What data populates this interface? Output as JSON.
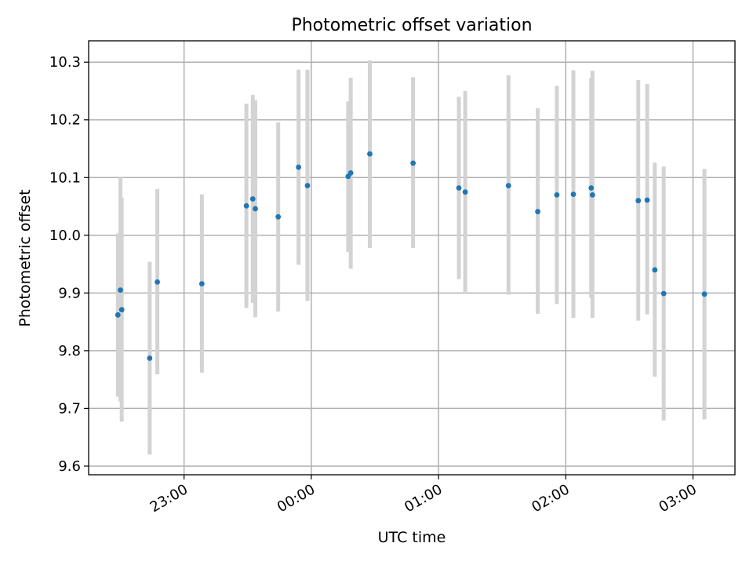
{
  "chart_data": {
    "type": "scatter",
    "title": "Photometric offset variation",
    "xlabel": "UTC time",
    "ylabel": "Photometric offset",
    "x_unit": "hours after midnight UTC (negative = before 00:00)",
    "xlim": [
      -1.75,
      3.33
    ],
    "ylim": [
      9.585,
      10.337
    ],
    "xticks": [
      {
        "value": -1.0,
        "label": "23:00"
      },
      {
        "value": 0.0,
        "label": "00:00"
      },
      {
        "value": 1.0,
        "label": "01:00"
      },
      {
        "value": 2.0,
        "label": "02:00"
      },
      {
        "value": 3.0,
        "label": "03:00"
      }
    ],
    "yticks": [
      {
        "value": 9.6,
        "label": "9.6"
      },
      {
        "value": 9.7,
        "label": "9.7"
      },
      {
        "value": 9.8,
        "label": "9.8"
      },
      {
        "value": 9.9,
        "label": "9.9"
      },
      {
        "value": 10.0,
        "label": "10.0"
      },
      {
        "value": 10.1,
        "label": "10.1"
      },
      {
        "value": 10.2,
        "label": "10.2"
      },
      {
        "value": 10.3,
        "label": "10.3"
      }
    ],
    "grid": true,
    "point_color": "#1f77b4",
    "errorbar_color": "#d3d3d3",
    "points": [
      {
        "x": -1.52,
        "y": 9.862,
        "lo": 9.72,
        "hi": 10.003
      },
      {
        "x": -1.5,
        "y": 9.905,
        "lo": 9.712,
        "hi": 10.1
      },
      {
        "x": -1.49,
        "y": 9.871,
        "lo": 9.677,
        "hi": 10.065
      },
      {
        "x": -1.27,
        "y": 9.787,
        "lo": 9.62,
        "hi": 9.954
      },
      {
        "x": -1.21,
        "y": 9.919,
        "lo": 9.759,
        "hi": 10.08
      },
      {
        "x": -0.86,
        "y": 9.916,
        "lo": 9.762,
        "hi": 10.071
      },
      {
        "x": -0.51,
        "y": 10.051,
        "lo": 9.874,
        "hi": 10.228
      },
      {
        "x": -0.46,
        "y": 10.063,
        "lo": 9.883,
        "hi": 10.243
      },
      {
        "x": -0.44,
        "y": 10.046,
        "lo": 9.858,
        "hi": 10.234
      },
      {
        "x": -0.26,
        "y": 10.032,
        "lo": 9.868,
        "hi": 10.196
      },
      {
        "x": -0.1,
        "y": 10.118,
        "lo": 9.949,
        "hi": 10.287
      },
      {
        "x": -0.03,
        "y": 10.086,
        "lo": 9.886,
        "hi": 10.287
      },
      {
        "x": 0.29,
        "y": 10.102,
        "lo": 9.971,
        "hi": 10.232
      },
      {
        "x": 0.31,
        "y": 10.108,
        "lo": 9.942,
        "hi": 10.273
      },
      {
        "x": 0.46,
        "y": 10.141,
        "lo": 9.978,
        "hi": 10.303
      },
      {
        "x": 0.8,
        "y": 10.125,
        "lo": 9.978,
        "hi": 10.274
      },
      {
        "x": 1.16,
        "y": 10.082,
        "lo": 9.924,
        "hi": 10.24
      },
      {
        "x": 1.21,
        "y": 10.075,
        "lo": 9.902,
        "hi": 10.25
      },
      {
        "x": 1.55,
        "y": 10.086,
        "lo": 9.897,
        "hi": 10.277
      },
      {
        "x": 1.78,
        "y": 10.041,
        "lo": 9.864,
        "hi": 10.22
      },
      {
        "x": 1.93,
        "y": 10.07,
        "lo": 9.881,
        "hi": 10.259
      },
      {
        "x": 2.06,
        "y": 10.071,
        "lo": 9.857,
        "hi": 10.286
      },
      {
        "x": 2.2,
        "y": 10.082,
        "lo": 9.892,
        "hi": 10.273
      },
      {
        "x": 2.21,
        "y": 10.07,
        "lo": 9.857,
        "hi": 10.285
      },
      {
        "x": 2.57,
        "y": 10.06,
        "lo": 9.852,
        "hi": 10.269
      },
      {
        "x": 2.64,
        "y": 10.061,
        "lo": 9.863,
        "hi": 10.262
      },
      {
        "x": 2.7,
        "y": 9.94,
        "lo": 9.755,
        "hi": 10.126
      },
      {
        "x": 2.77,
        "y": 9.899,
        "lo": 9.679,
        "hi": 10.119
      },
      {
        "x": 3.09,
        "y": 9.898,
        "lo": 9.681,
        "hi": 10.115
      }
    ]
  }
}
